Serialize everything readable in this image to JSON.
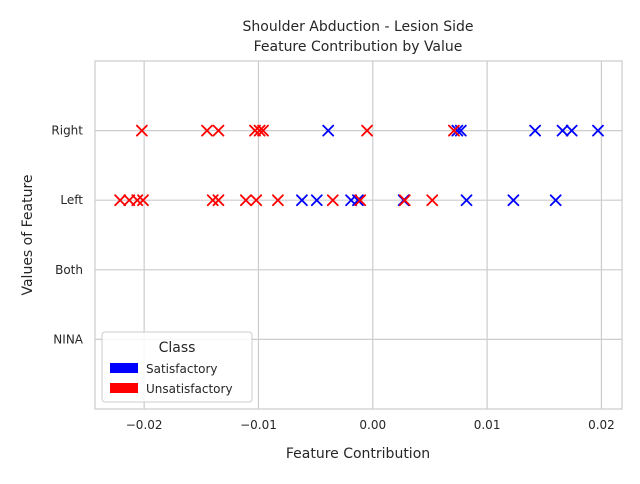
{
  "chart_data": {
    "type": "scatter",
    "title": [
      "Shoulder Abduction - Lesion Side",
      "Feature Contribution by Value"
    ],
    "xlabel": "Feature Contribution",
    "ylabel": "Values of Feature",
    "xlim": [
      -0.0243,
      0.0218
    ],
    "x_ticks": [
      -0.02,
      -0.01,
      0.0,
      0.01,
      0.02
    ],
    "x_tick_labels": [
      "−0.02",
      "−0.01",
      "0.00",
      "0.01",
      "0.02"
    ],
    "categories": [
      "NINA",
      "Both",
      "Left",
      "Right"
    ],
    "grid": true,
    "legend": {
      "title": "Class",
      "location": "lower-left"
    },
    "series": [
      {
        "name": "Satisfactory",
        "color": "#0000ff",
        "marker": "x",
        "points": [
          {
            "x": -0.0039,
            "y": "Right"
          },
          {
            "x": 0.0074,
            "y": "Right"
          },
          {
            "x": 0.0077,
            "y": "Right"
          },
          {
            "x": 0.0142,
            "y": "Right"
          },
          {
            "x": 0.0166,
            "y": "Right"
          },
          {
            "x": 0.0174,
            "y": "Right"
          },
          {
            "x": 0.0197,
            "y": "Right"
          },
          {
            "x": -0.0062,
            "y": "Left"
          },
          {
            "x": -0.0049,
            "y": "Left"
          },
          {
            "x": -0.0019,
            "y": "Left"
          },
          {
            "x": -0.0013,
            "y": "Left"
          },
          {
            "x": 0.0027,
            "y": "Left"
          },
          {
            "x": 0.0082,
            "y": "Left"
          },
          {
            "x": 0.0123,
            "y": "Left"
          },
          {
            "x": 0.016,
            "y": "Left"
          }
        ]
      },
      {
        "name": "Unsatisfactory",
        "color": "#ff0000",
        "marker": "x",
        "points": [
          {
            "x": -0.0202,
            "y": "Right"
          },
          {
            "x": -0.0145,
            "y": "Right"
          },
          {
            "x": -0.0135,
            "y": "Right"
          },
          {
            "x": -0.0103,
            "y": "Right"
          },
          {
            "x": -0.0099,
            "y": "Right"
          },
          {
            "x": -0.0096,
            "y": "Right"
          },
          {
            "x": -0.0005,
            "y": "Right"
          },
          {
            "x": 0.0071,
            "y": "Right"
          },
          {
            "x": -0.0221,
            "y": "Left"
          },
          {
            "x": -0.0213,
            "y": "Left"
          },
          {
            "x": -0.0206,
            "y": "Left"
          },
          {
            "x": -0.0201,
            "y": "Left"
          },
          {
            "x": -0.014,
            "y": "Left"
          },
          {
            "x": -0.0135,
            "y": "Left"
          },
          {
            "x": -0.0111,
            "y": "Left"
          },
          {
            "x": -0.0102,
            "y": "Left"
          },
          {
            "x": -0.0083,
            "y": "Left"
          },
          {
            "x": -0.0035,
            "y": "Left"
          },
          {
            "x": -0.0011,
            "y": "Left"
          },
          {
            "x": 0.0028,
            "y": "Left"
          },
          {
            "x": 0.0052,
            "y": "Left"
          }
        ]
      }
    ]
  }
}
